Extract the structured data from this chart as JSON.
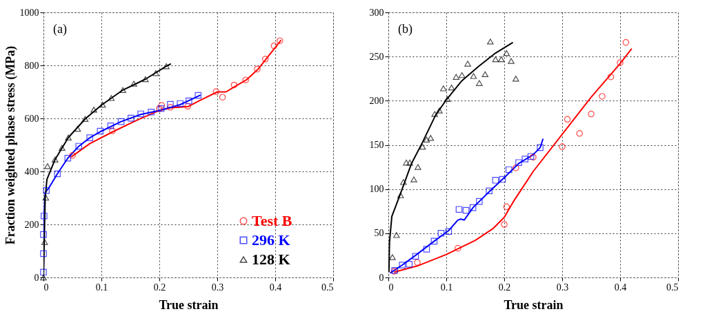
{
  "chart_data": [
    {
      "type": "scatter",
      "xlabel": "True strain",
      "ylabel": "Fraction weighted phase stress (MPa)",
      "annotations": [
        "(a)"
      ],
      "xlim": [
        0,
        0.5
      ],
      "ylim": [
        0,
        1000
      ],
      "xticks": [
        0,
        0.1,
        0.2,
        0.3,
        0.4,
        0.5
      ],
      "yticks": [
        0,
        200,
        400,
        600,
        800,
        1000
      ],
      "grid": true,
      "legend": "bottom right",
      "series": [
        {
          "type": "line",
          "color": "#ff0000",
          "line_style": "solid",
          "x": [
            0.048,
            0.08,
            0.12,
            0.16,
            0.2,
            0.22,
            0.25,
            0.27,
            0.3,
            0.315,
            0.33,
            0.35,
            0.37,
            0.39,
            0.41
          ],
          "values": [
            455,
            505,
            550,
            592,
            630,
            640,
            645,
            668,
            700,
            700,
            720,
            745,
            785,
            840,
            895
          ]
        },
        {
          "type": "line",
          "color": "#0000ff",
          "line_style": "solid",
          "x": [
            0,
            0.001,
            0.003,
            0.01,
            0.024,
            0.042,
            0.061,
            0.08,
            0.1,
            0.134,
            0.168,
            0.2,
            0.236,
            0.271
          ],
          "values": [
            0,
            230,
            320,
            340,
            391,
            450,
            495,
            527,
            552,
            588,
            615,
            630,
            652,
            688
          ]
        },
        {
          "type": "line",
          "color": "#000000",
          "line_style": "solid",
          "x": [
            0,
            0.003,
            0.006,
            0.02,
            0.043,
            0.072,
            0.1,
            0.137,
            0.176,
            0.212,
            0.22
          ],
          "values": [
            0,
            300,
            370,
            445,
            528,
            598,
            650,
            707,
            748,
            797,
            806
          ]
        },
        {
          "name": "Test  B",
          "color": "#ff0000",
          "marker": "circle",
          "x": [
            0.05,
            0.119,
            0.2,
            0.204,
            0.219,
            0.249,
            0.298,
            0.309,
            0.329,
            0.349,
            0.369,
            0.383,
            0.398,
            0.408
          ],
          "values": [
            460,
            553,
            637,
            649,
            642,
            646,
            701,
            680,
            726,
            745,
            786,
            824,
            874,
            893
          ]
        },
        {
          "name": "296 K",
          "color": "#0000ff",
          "marker": "square",
          "x": [
            0,
            0,
            0,
            0.001,
            0.005,
            0.024,
            0.042,
            0.061,
            0.08,
            0.098,
            0.116,
            0.134,
            0.151,
            0.168,
            0.186,
            0.203,
            0.219,
            0.236,
            0.251,
            0.267
          ],
          "values": [
            20,
            90,
            162,
            232,
            328,
            391,
            450,
            495,
            527,
            552,
            572,
            588,
            601,
            617,
            624,
            637,
            653,
            656,
            666,
            687
          ]
        },
        {
          "name": "128 K",
          "color": "#000000",
          "marker": "triangle",
          "x": [
            0,
            0.002,
            0.004,
            0.007,
            0.02,
            0.032,
            0.043,
            0.059,
            0.072,
            0.087,
            0.102,
            0.117,
            0.137,
            0.156,
            0.176,
            0.194,
            0.212
          ],
          "values": [
            0,
            134,
            301,
            420,
            445,
            489,
            528,
            561,
            598,
            633,
            652,
            677,
            707,
            731,
            748,
            771,
            797
          ]
        }
      ]
    },
    {
      "type": "scatter",
      "xlabel": "True strain",
      "annotations": [
        "(b)"
      ],
      "xlim": [
        0,
        0.5
      ],
      "ylim": [
        0,
        300
      ],
      "xticks": [
        0,
        0.1,
        0.2,
        0.3,
        0.4,
        0.5
      ],
      "yticks": [
        0,
        50,
        100,
        150,
        200,
        250,
        300
      ],
      "grid": true,
      "series": [
        {
          "type": "line",
          "color": "#ff0000",
          "line_style": "solid",
          "x": [
            0.01,
            0.05,
            0.1,
            0.15,
            0.18,
            0.2,
            0.215,
            0.23,
            0.25,
            0.3,
            0.35,
            0.4,
            0.42
          ],
          "values": [
            6,
            13,
            26,
            42,
            55,
            68,
            85,
            100,
            120,
            162,
            204,
            242,
            259
          ]
        },
        {
          "type": "line",
          "color": "#0000ff",
          "line_style": "solid",
          "x": [
            0.003,
            0.024,
            0.047,
            0.079,
            0.104,
            0.12,
            0.125,
            0.131,
            0.146,
            0.174,
            0.2,
            0.225,
            0.25,
            0.262,
            0.267
          ],
          "values": [
            5,
            14,
            25,
            41,
            53,
            65,
            66,
            65,
            79,
            97,
            113,
            129,
            139,
            147,
            157
          ]
        },
        {
          "type": "line",
          "color": "#000000",
          "line_style": "solid",
          "x": [
            0.001,
            0.002,
            0.006,
            0.021,
            0.04,
            0.059,
            0.081,
            0.1,
            0.126,
            0.156,
            0.185,
            0.215
          ],
          "values": [
            6,
            40,
            69,
            95,
            129,
            153,
            183,
            201,
            222,
            239,
            254,
            266
          ]
        },
        {
          "color": "#ff0000",
          "marker": "circle",
          "x": [
            0.01,
            0.05,
            0.12,
            0.2,
            0.204,
            0.22,
            0.25,
            0.3,
            0.309,
            0.33,
            0.35,
            0.369,
            0.384,
            0.4,
            0.41
          ],
          "values": [
            7,
            17,
            33,
            60,
            80,
            124,
            136,
            148,
            179,
            163,
            185,
            205,
            227,
            243,
            266
          ]
        },
        {
          "color": "#0000ff",
          "marker": "square",
          "x": [
            0.011,
            0.024,
            0.036,
            0.047,
            0.066,
            0.079,
            0.091,
            0.104,
            0.122,
            0.134,
            0.146,
            0.157,
            0.174,
            0.185,
            0.197,
            0.208,
            0.225,
            0.236,
            0.246,
            0.262
          ],
          "values": [
            8,
            14,
            15,
            24,
            32,
            41,
            50,
            52,
            77,
            76,
            79,
            86,
            98,
            110,
            111,
            122,
            130,
            134,
            137,
            147
          ]
        },
        {
          "color": "#000000",
          "marker": "triangle",
          "x": [
            0.007,
            0.014,
            0.021,
            0.026,
            0.031,
            0.037,
            0.044,
            0.051,
            0.059,
            0.066,
            0.073,
            0.08,
            0.088,
            0.095,
            0.102,
            0.109,
            0.117,
            0.127,
            0.137,
            0.147,
            0.157,
            0.167,
            0.176,
            0.185,
            0.195,
            0.204,
            0.212,
            0.22
          ],
          "values": [
            23,
            48,
            93,
            108,
            130,
            130,
            111,
            125,
            148,
            156,
            158,
            185,
            189,
            214,
            202,
            215,
            227,
            229,
            242,
            228,
            220,
            230,
            267,
            247,
            247,
            254,
            245,
            225
          ]
        }
      ]
    }
  ]
}
